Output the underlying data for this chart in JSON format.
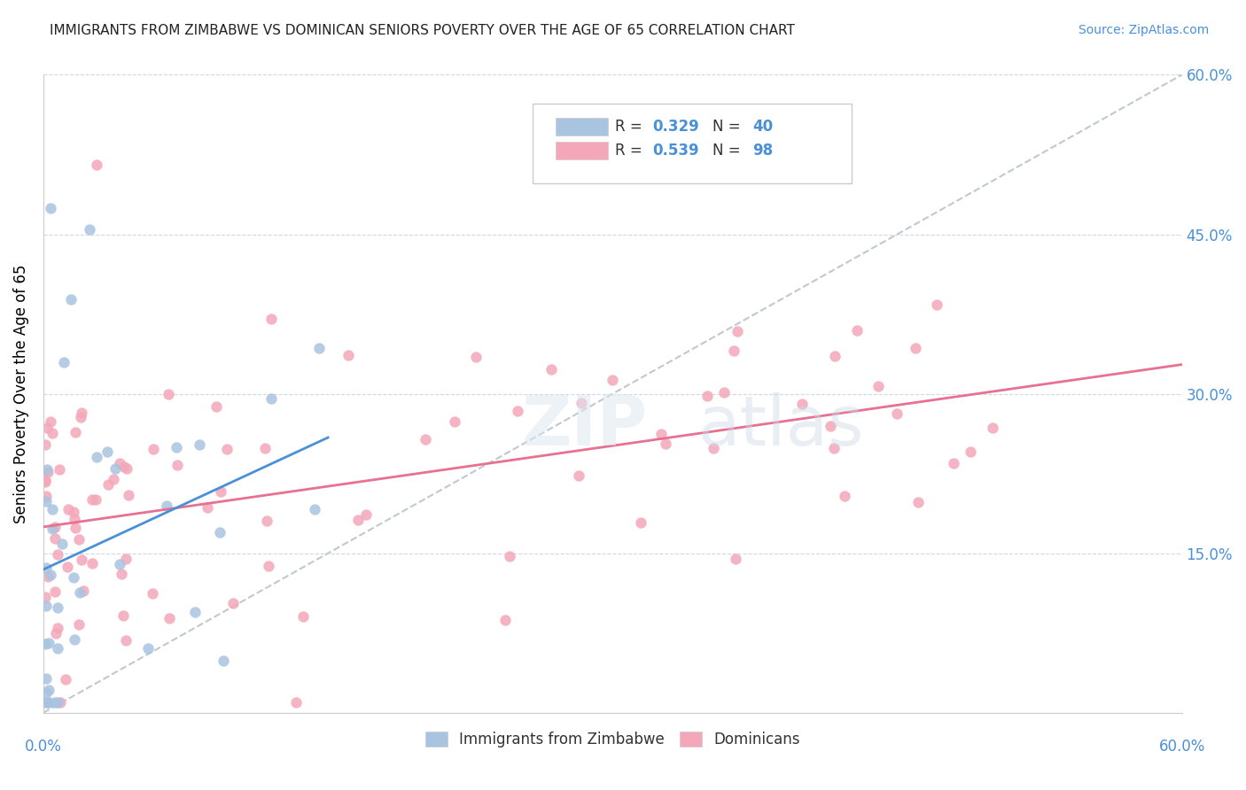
{
  "title": "IMMIGRANTS FROM ZIMBABWE VS DOMINICAN SENIORS POVERTY OVER THE AGE OF 65 CORRELATION CHART",
  "source": "Source: ZipAtlas.com",
  "ylabel": "Seniors Poverty Over the Age of 65",
  "legend_r_blue": "0.329",
  "legend_n_blue": "40",
  "legend_r_pink": "0.539",
  "legend_n_pink": "98",
  "legend_label_blue": "Immigrants from Zimbabwe",
  "legend_label_pink": "Dominicans",
  "blue_color": "#a8c4e0",
  "pink_color": "#f4a7b9",
  "blue_line_color": "#4a90d9",
  "pink_line_color": "#e87090",
  "diag_color": "#c0c8d0",
  "background_color": "#ffffff",
  "grid_color": "#d0d8e0",
  "title_fontsize": 11,
  "tick_label_color": "#4a90d9",
  "xlim": [
    0.0,
    0.6
  ],
  "ylim": [
    0.0,
    0.6
  ],
  "ytick_values": [
    0.0,
    0.15,
    0.3,
    0.45,
    0.6
  ],
  "ytick_labels": [
    "",
    "15.0%",
    "30.0%",
    "45.0%",
    "60.0%"
  ]
}
